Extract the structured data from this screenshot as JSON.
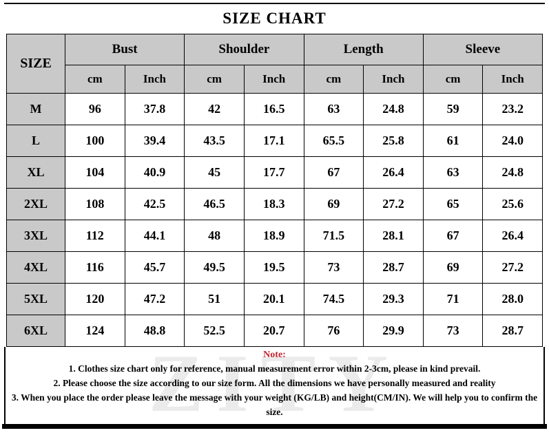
{
  "title": "SIZE CHART",
  "chart_data": {
    "type": "table",
    "title": "SIZE CHART",
    "size_column_header": "SIZE",
    "column_groups": [
      "Bust",
      "Shoulder",
      "Length",
      "Sleeve"
    ],
    "unit_columns": [
      "cm",
      "Inch"
    ],
    "rows": [
      {
        "size": "M",
        "values": [
          "96",
          "37.8",
          "42",
          "16.5",
          "63",
          "24.8",
          "59",
          "23.2"
        ]
      },
      {
        "size": "L",
        "values": [
          "100",
          "39.4",
          "43.5",
          "17.1",
          "65.5",
          "25.8",
          "61",
          "24.0"
        ]
      },
      {
        "size": "XL",
        "values": [
          "104",
          "40.9",
          "45",
          "17.7",
          "67",
          "26.4",
          "63",
          "24.8"
        ]
      },
      {
        "size": "2XL",
        "values": [
          "108",
          "42.5",
          "46.5",
          "18.3",
          "69",
          "27.2",
          "65",
          "25.6"
        ]
      },
      {
        "size": "3XL",
        "values": [
          "112",
          "44.1",
          "48",
          "18.9",
          "71.5",
          "28.1",
          "67",
          "26.4"
        ]
      },
      {
        "size": "4XL",
        "values": [
          "116",
          "45.7",
          "49.5",
          "19.5",
          "73",
          "28.7",
          "69",
          "27.2"
        ]
      },
      {
        "size": "5XL",
        "values": [
          "120",
          "47.2",
          "51",
          "20.1",
          "74.5",
          "29.3",
          "71",
          "28.0"
        ]
      },
      {
        "size": "6XL",
        "values": [
          "124",
          "48.8",
          "52.5",
          "20.7",
          "76",
          "29.9",
          "73",
          "28.7"
        ]
      }
    ]
  },
  "note": {
    "heading": "Note:",
    "lines": [
      "1. Clothes size chart only for reference, manual measurement error within 2-3cm, please in kind prevail.",
      "2. Please choose the size according to our size form. All the dimensions we have personally measured and reality",
      "3. When you place the order please leave the message with your weight (KG/LB) and height(CM/IN). We will help you to confirm the size."
    ]
  },
  "watermark": "ZITY",
  "colors": {
    "header_bg": "#c9c9c9",
    "note_heading": "#c4232e",
    "border": "#000000",
    "watermark": "#ebebeb"
  }
}
